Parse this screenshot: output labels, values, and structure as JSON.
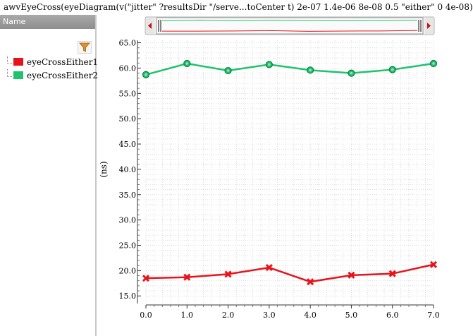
{
  "window": {
    "title": "awvEyeCross(eyeDiagram(v(\"jitter\" ?resultsDir \"/serve...toCenter t) 2e-07 1.4e-06 8e-08 0.5 \"either\" 0 4e-08)"
  },
  "sidebar": {
    "header": "Name",
    "filter_icon": "filter-funnel-icon"
  },
  "colors": {
    "series1": "#e8141c",
    "series2": "#1fc36e",
    "grid": "#cfcfcf",
    "scroll_arrow": "#cc1010"
  },
  "chart_data": {
    "type": "line",
    "title": "",
    "xlabel": "",
    "ylabel": "(ns)",
    "xlim": [
      0,
      7
    ],
    "ylim": [
      13.5,
      65.5
    ],
    "x_ticks": [
      0.0,
      1.0,
      2.0,
      3.0,
      4.0,
      5.0,
      6.0,
      7.0
    ],
    "x_tick_labels": [
      "0.0",
      "1.0",
      "2.0",
      "3.0",
      "4.0",
      "5.0",
      "6.0",
      "7.0"
    ],
    "y_ticks": [
      15,
      20,
      25,
      30,
      35,
      40,
      45,
      50,
      55,
      60,
      65
    ],
    "y_tick_labels": [
      "15.0",
      "20.0",
      "25.0",
      "30.0",
      "35.0",
      "40.0",
      "45.0",
      "50.0",
      "55.0",
      "60.0",
      "65.0"
    ],
    "grid": true,
    "legend_position": "left-panel",
    "series": [
      {
        "name": "eyeCrossEither1",
        "marker": "x",
        "x": [
          0,
          1,
          2,
          3,
          4,
          5,
          6,
          7
        ],
        "values": [
          18.5,
          18.7,
          19.3,
          20.6,
          17.8,
          19.1,
          19.4,
          21.2
        ]
      },
      {
        "name": "eyeCrossEither2",
        "marker": "circle",
        "x": [
          0,
          1,
          2,
          3,
          4,
          5,
          6,
          7
        ],
        "values": [
          58.7,
          60.9,
          59.5,
          60.7,
          59.6,
          59.0,
          59.7,
          60.9
        ]
      }
    ]
  }
}
